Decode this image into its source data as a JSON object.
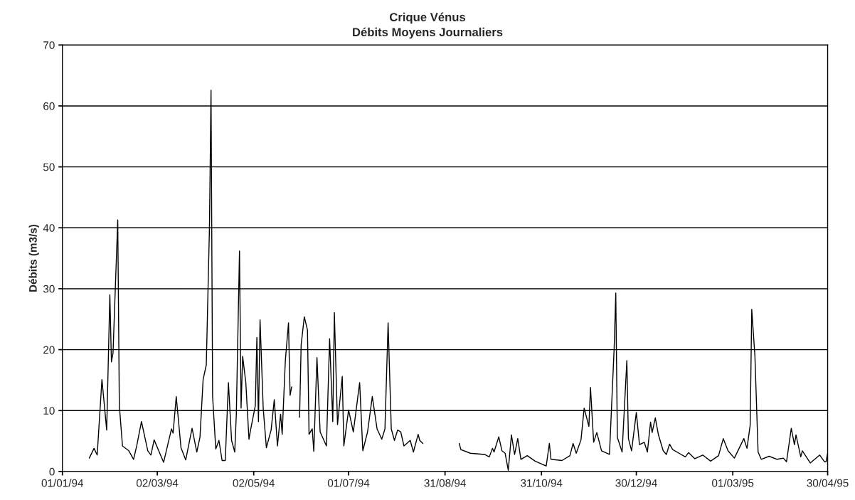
{
  "chart_data": {
    "type": "line",
    "title": "Crique Vénus",
    "subtitle": "Débits Moyens Journaliers",
    "ylabel": "Débits (m3/s)",
    "x": [
      "1994-01-18",
      "1994-01-21",
      "1994-01-23",
      "1994-01-26",
      "1994-01-29",
      "1994-01-31",
      "1994-02-01",
      "1994-02-02",
      "1994-02-05",
      "1994-02-06",
      "1994-02-08",
      "1994-02-12",
      "1994-02-15",
      "1994-02-17",
      "1994-02-20",
      "1994-02-24",
      "1994-02-26",
      "1994-02-28",
      "1994-03-06",
      "1994-03-11",
      "1994-03-12",
      "1994-03-14",
      "1994-03-17",
      "1994-03-20",
      "1994-03-24",
      "1994-03-27",
      "1994-03-29",
      "1994-03-31",
      "1994-04-02",
      "1994-04-04",
      "1994-04-05",
      "1994-04-06",
      "1994-04-08",
      "1994-04-10",
      "1994-04-12",
      "1994-04-14",
      "1994-04-16",
      "1994-04-18",
      "1994-04-20",
      "1994-04-21",
      "1994-04-23",
      "1994-04-24",
      "1994-04-25",
      "1994-04-27",
      "1994-04-29",
      "1994-04-30",
      "1994-05-03",
      "1994-05-04",
      "1994-05-05",
      "1994-05-06",
      "1994-05-08",
      "1994-05-10",
      "1994-05-13",
      "1994-05-15",
      "1994-05-17",
      "1994-05-19",
      "1994-05-20",
      "1994-05-22",
      "1994-05-24",
      "1994-05-25",
      "1994-05-26",
      "1994-05-28",
      "1994-05-31",
      "1994-06-01",
      "1994-06-03",
      "1994-06-05",
      "1994-06-06",
      "1994-06-08",
      "1994-06-09",
      "1994-06-11",
      "1994-06-13",
      "1994-06-17",
      "1994-06-19",
      "1994-06-21",
      "1994-06-22",
      "1994-06-24",
      "1994-06-27",
      "1994-06-28",
      "1994-07-01",
      "1994-07-04",
      "1994-07-08",
      "1994-07-10",
      "1994-07-13",
      "1994-07-16",
      "1994-07-19",
      "1994-07-22",
      "1994-07-24",
      "1994-07-26",
      "1994-07-28",
      "1994-07-30",
      "1994-08-01",
      "1994-08-03",
      "1994-08-05",
      "1994-08-09",
      "1994-08-11",
      "1994-08-14",
      "1994-08-15",
      "1994-08-17",
      "1994-08-29",
      "1994-09-09",
      "1994-09-10",
      "1994-09-16",
      "1994-09-25",
      "1994-09-28",
      "1994-09-30",
      "1994-10-01",
      "1994-10-04",
      "1994-10-06",
      "1994-10-08",
      "1994-10-10",
      "1994-10-12",
      "1994-10-14",
      "1994-10-16",
      "1994-10-18",
      "1994-10-22",
      "1994-10-27",
      "1994-11-03",
      "1994-11-05",
      "1994-11-06",
      "1994-11-13",
      "1994-11-18",
      "1994-11-20",
      "1994-11-22",
      "1994-11-25",
      "1994-11-27",
      "1994-11-30",
      "1994-12-01",
      "1994-12-03",
      "1994-12-05",
      "1994-12-08",
      "1994-12-13",
      "1994-12-16",
      "1994-12-17",
      "1994-12-18",
      "1994-12-21",
      "1994-12-24",
      "1994-12-25",
      "1994-12-27",
      "1994-12-30",
      "1995-01-01",
      "1995-01-04",
      "1995-01-06",
      "1995-01-08",
      "1995-01-09",
      "1995-01-11",
      "1995-01-13",
      "1995-01-16",
      "1995-01-18",
      "1995-01-20",
      "1995-01-22",
      "1995-01-26",
      "1995-01-30",
      "1995-02-01",
      "1995-02-05",
      "1995-02-10",
      "1995-02-15",
      "1995-02-20",
      "1995-02-23",
      "1995-02-26",
      "1995-03-02",
      "1995-03-08",
      "1995-03-10",
      "1995-03-12",
      "1995-03-13",
      "1995-03-15",
      "1995-03-17",
      "1995-03-19",
      "1995-03-24",
      "1995-03-29",
      "1995-04-02",
      "1995-04-04",
      "1995-04-07",
      "1995-04-09",
      "1995-04-10",
      "1995-04-13",
      "1995-04-14",
      "1995-04-19",
      "1995-04-25",
      "1995-04-28",
      "1995-04-29",
      "1995-04-30"
    ],
    "series": [
      {
        "color": "#000000",
        "values": [
          2.2,
          3.8,
          2.7,
          15.1,
          6.8,
          29,
          18,
          19.4,
          41.3,
          10.8,
          4.2,
          3.4,
          2.0,
          4.2,
          8.2,
          3.4,
          2.7,
          5.2,
          1.5,
          7.0,
          6.3,
          12.3,
          3.9,
          1.9,
          7.1,
          3.2,
          5.6,
          15.1,
          17.5,
          40,
          62.6,
          12.3,
          3.7,
          5.1,
          1.8,
          1.8,
          14.6,
          5.1,
          3.2,
          9.4,
          36.2,
          10.4,
          18.9,
          14.6,
          5.3,
          6.8,
          10.8,
          22,
          8.2,
          24.9,
          10.4,
          3.9,
          6.8,
          11.8,
          4.2,
          9.4,
          6.1,
          18.2,
          24.4,
          12.5,
          13.9,
          null,
          8.9,
          20.8,
          25.4,
          23.2,
          6.1,
          7,
          3.3,
          18.7,
          6.5,
          4.2,
          21.8,
          8.2,
          26.1,
          7.7,
          15.6,
          4.2,
          10.1,
          6.5,
          14.6,
          3.4,
          6.5,
          12.3,
          7,
          5.3,
          7,
          24.4,
          7,
          5.1,
          6.8,
          6.5,
          4.2,
          5.1,
          3.2,
          6.1,
          5.1,
          4.6,
          null,
          4.6,
          3.6,
          3.0,
          2.8,
          2.4,
          3.8,
          3.2,
          5.7,
          3.4,
          3.0,
          0.2,
          6.0,
          2.8,
          5.4,
          2.0,
          2.6,
          1.7,
          0.9,
          4.6,
          2.0,
          1.8,
          2.6,
          4.6,
          3.0,
          5.2,
          10.4,
          7.4,
          13.8,
          4.8,
          6.4,
          3.4,
          2.8,
          20.4,
          29.3,
          5.6,
          3.2,
          18.2,
          5.4,
          3.4,
          9.7,
          4.4,
          4.8,
          3.2,
          8.1,
          6.4,
          8.8,
          6.0,
          3.4,
          2.8,
          4.5,
          3.6,
          3.0,
          2.4,
          3.1,
          2.1,
          2.7,
          1.7,
          2.6,
          5.4,
          3.4,
          2.2,
          5.4,
          3.8,
          7.6,
          26.6,
          19.0,
          3.2,
          2.0,
          2.5,
          2.0,
          2.2,
          1.6,
          7.1,
          4.4,
          6.0,
          2.4,
          3.4,
          1.4,
          2.7,
          1.6,
          1.6,
          3.0
        ]
      }
    ],
    "xlim": [
      "1994-01-01",
      "1995-04-30"
    ],
    "xticks": [
      {
        "value": "1994-01-01",
        "label": "01/01/94"
      },
      {
        "value": "1994-03-02",
        "label": "02/03/94"
      },
      {
        "value": "1994-05-02",
        "label": "02/05/94"
      },
      {
        "value": "1994-07-01",
        "label": "01/07/94"
      },
      {
        "value": "1994-08-31",
        "label": "31/08/94"
      },
      {
        "value": "1994-10-31",
        "label": "31/10/94"
      },
      {
        "value": "1994-12-30",
        "label": "30/12/94"
      },
      {
        "value": "1995-03-01",
        "label": "01/03/95"
      },
      {
        "value": "1995-04-30",
        "label": "30/04/95"
      }
    ],
    "ylim": [
      0,
      70
    ],
    "yticks": [
      0,
      10,
      20,
      30,
      40,
      50,
      60,
      70
    ],
    "grid": "y",
    "marker": "none",
    "line_style": "solid"
  }
}
